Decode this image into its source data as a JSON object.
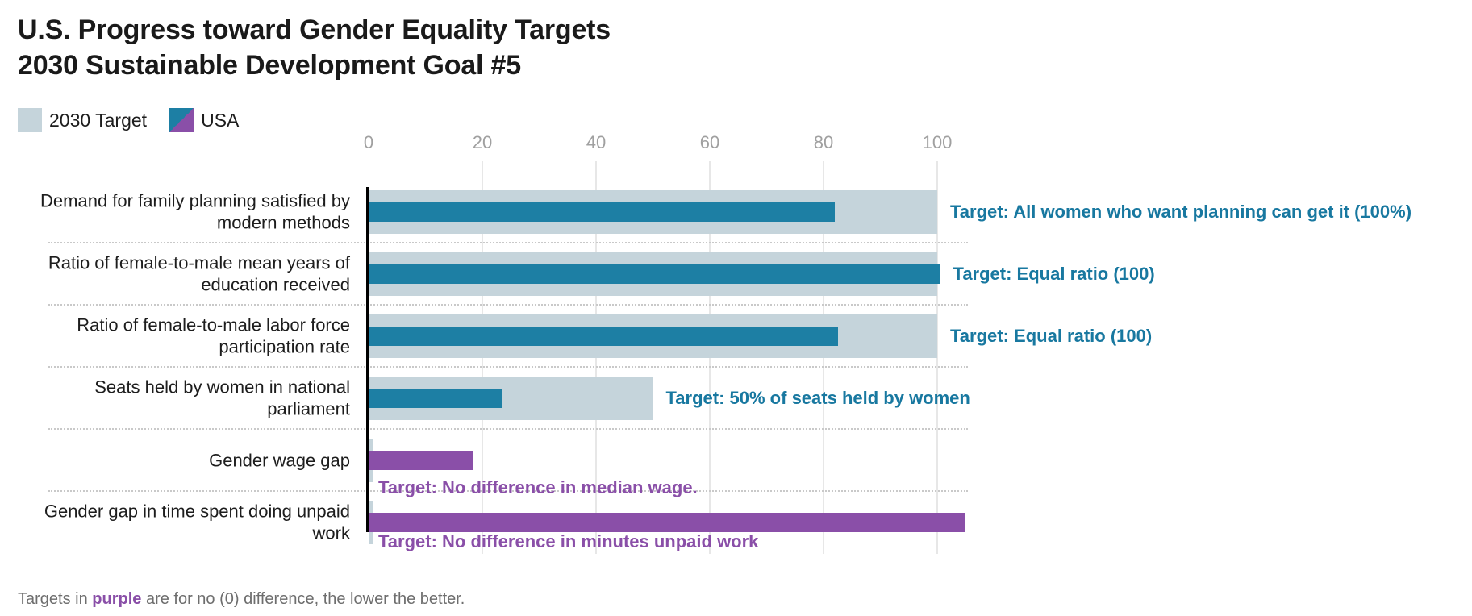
{
  "header": {
    "title_line1": "U.S. Progress toward Gender Equality Targets",
    "title_line2": "2030 Sustainable Development Goal #5"
  },
  "legend": {
    "target_label": "2030 Target",
    "usa_label": "USA"
  },
  "footnote": {
    "prefix": "Targets in ",
    "highlight": "purple",
    "suffix": " are for no (0) difference, the lower the better."
  },
  "colors": {
    "target_bar": "#c5d4db",
    "usa_teal": "#1d7fa4",
    "usa_purple": "#8a4fa8",
    "annotation_teal": "#1878a0",
    "annotation_purple": "#8a4fa8",
    "axis": "#000000",
    "tick_label": "#a0a0a0",
    "gridline": "#e7e7e7",
    "separator": "#c9c9c9",
    "title_text": "#1a1a1a",
    "label_text": "#1d1d1d",
    "footnote_text": "#6e6e6e"
  },
  "chart_data": {
    "type": "bar",
    "orientation": "horizontal",
    "title": "U.S. Progress toward Gender Equality Targets — 2030 Sustainable Development Goal #5",
    "legend_position": "top-left",
    "grid": true,
    "x_axis": {
      "ticks": [
        0,
        20,
        40,
        60,
        80,
        100
      ],
      "range": [
        0,
        107
      ]
    },
    "series_names": [
      "2030 Target",
      "USA"
    ],
    "rows": [
      {
        "label": "Demand for family planning satisfied by modern methods",
        "target": 100,
        "usa": 82,
        "usa_color": "teal",
        "annotation": "Target: All women who want planning can get it (100%)",
        "annotation_position": "right"
      },
      {
        "label": "Ratio of female-to-male mean years of education received",
        "target": 100,
        "usa": 100.5,
        "usa_color": "teal",
        "annotation": "Target: Equal ratio (100)",
        "annotation_position": "right"
      },
      {
        "label": "Ratio of female-to-male labor force participation rate",
        "target": 100,
        "usa": 82.5,
        "usa_color": "teal",
        "annotation": "Target: Equal ratio (100)",
        "annotation_position": "right"
      },
      {
        "label": "Seats held by women in national parliament",
        "target": 50,
        "usa": 23.5,
        "usa_color": "teal",
        "annotation": "Target: 50% of seats held by women",
        "annotation_position": "right"
      },
      {
        "label": "Gender wage gap",
        "target": 0,
        "usa": 18.5,
        "usa_color": "purple",
        "annotation": "Target: No difference in median wage.",
        "annotation_position": "below"
      },
      {
        "label": "Gender gap in time spent doing unpaid work",
        "target": 0,
        "usa": 105,
        "usa_color": "purple",
        "annotation": "Target: No difference in minutes unpaid work",
        "annotation_position": "below"
      }
    ]
  }
}
